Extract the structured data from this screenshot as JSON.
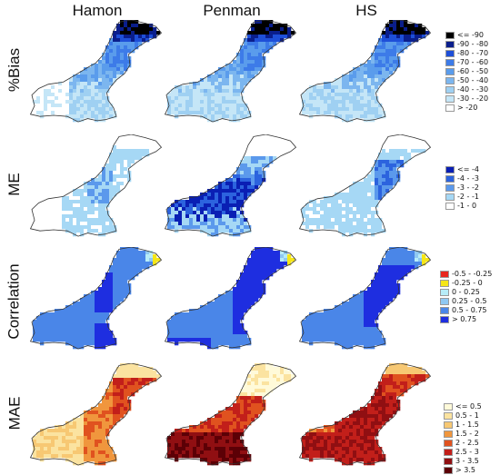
{
  "columns": [
    "Hamon",
    "Penman",
    "HS"
  ],
  "rows": [
    {
      "label": "%Bias",
      "legend": [
        {
          "text": "<= -90",
          "color": "#000000"
        },
        {
          "text": "-90 - -80",
          "color": "#0a1e8c"
        },
        {
          "text": "-80 - -70",
          "color": "#1e4fd8"
        },
        {
          "text": "-70 - -60",
          "color": "#3d7be8"
        },
        {
          "text": "-60 - -50",
          "color": "#5a9cec"
        },
        {
          "text": "-50 - -40",
          "color": "#7cb6ef"
        },
        {
          "text": "-40 - -30",
          "color": "#9fd0f2"
        },
        {
          "text": "-30 - -20",
          "color": "#c5e6f7"
        },
        {
          "text": "> -20",
          "color": "#ffffff"
        }
      ]
    },
    {
      "label": "ME",
      "legend": [
        {
          "text": "<= -4",
          "color": "#0a1fb4"
        },
        {
          "text": "-4 - -3",
          "color": "#2c63de"
        },
        {
          "text": "-3 - -2",
          "color": "#5b99ec"
        },
        {
          "text": "-2 - -1",
          "color": "#a6d8f5"
        },
        {
          "text": "-1 - 0",
          "color": "#ffffff"
        }
      ]
    },
    {
      "label": "Correlation",
      "legend": [
        {
          "text": "-0.5 - -0.25",
          "color": "#e8261e"
        },
        {
          "text": "-0.25 - 0",
          "color": "#f5e617"
        },
        {
          "text": "0 - 0.25",
          "color": "#b7ecf7"
        },
        {
          "text": "0.25 - 0.5",
          "color": "#8fc8f2"
        },
        {
          "text": "0.5 - 0.75",
          "color": "#4a86e8"
        },
        {
          "text": "> 0.75",
          "color": "#1e2ee0"
        }
      ]
    },
    {
      "label": "MAE",
      "legend": [
        {
          "text": "<= 0.5",
          "color": "#fffad9"
        },
        {
          "text": "0.5 - 1",
          "color": "#fbe3a0"
        },
        {
          "text": "1 - 1.5",
          "color": "#f7c873"
        },
        {
          "text": "1.5 - 2",
          "color": "#f0963d"
        },
        {
          "text": "2 - 2.5",
          "color": "#e0521f"
        },
        {
          "text": "2.5 - 3",
          "color": "#c21f1a"
        },
        {
          "text": "3 - 3.5",
          "color": "#900f12"
        },
        {
          "text": "> 3.5",
          "color": "#5c0006"
        }
      ]
    }
  ]
}
